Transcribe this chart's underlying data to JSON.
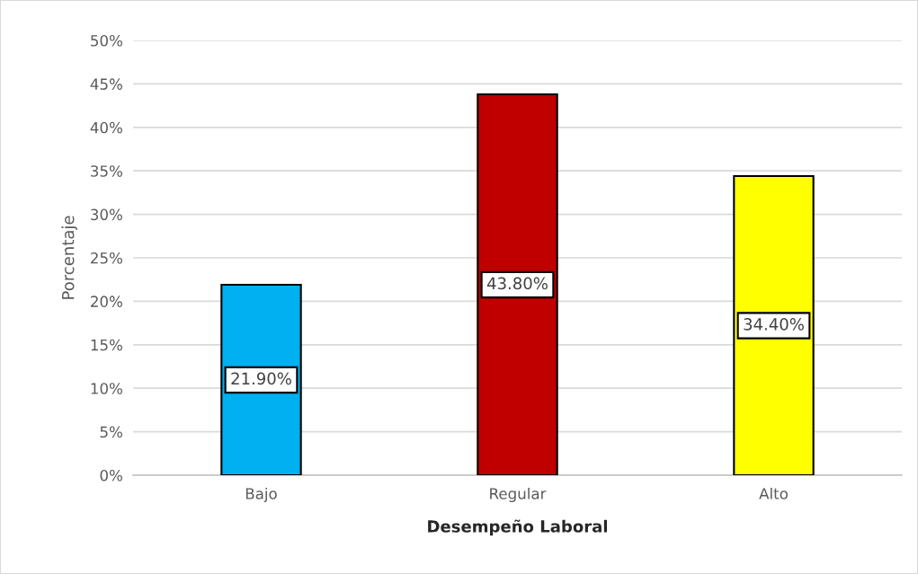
{
  "chart_data": {
    "type": "bar",
    "xlabel": "Desempeño Laboral",
    "ylabel": "Porcentaje",
    "categories": [
      "Bajo",
      "Regular",
      "Alto"
    ],
    "values": [
      21.9,
      43.8,
      34.4
    ],
    "colors": [
      "#00b0f0",
      "#c00000",
      "#ffff00"
    ],
    "value_labels": [
      "21.90%",
      "43.80%",
      "34.40%"
    ],
    "ylim": [
      0,
      50
    ],
    "yticks": [
      {
        "value": 0,
        "label": "0%"
      },
      {
        "value": 5,
        "label": "5%"
      },
      {
        "value": 10,
        "label": "10%"
      },
      {
        "value": 15,
        "label": "15%"
      },
      {
        "value": 20,
        "label": "20%"
      },
      {
        "value": 25,
        "label": "25%"
      },
      {
        "value": 30,
        "label": "30%"
      },
      {
        "value": 35,
        "label": "35%"
      },
      {
        "value": 40,
        "label": "40%"
      },
      {
        "value": 45,
        "label": "45%"
      },
      {
        "value": 50,
        "label": "50%"
      }
    ],
    "grid": "y"
  }
}
